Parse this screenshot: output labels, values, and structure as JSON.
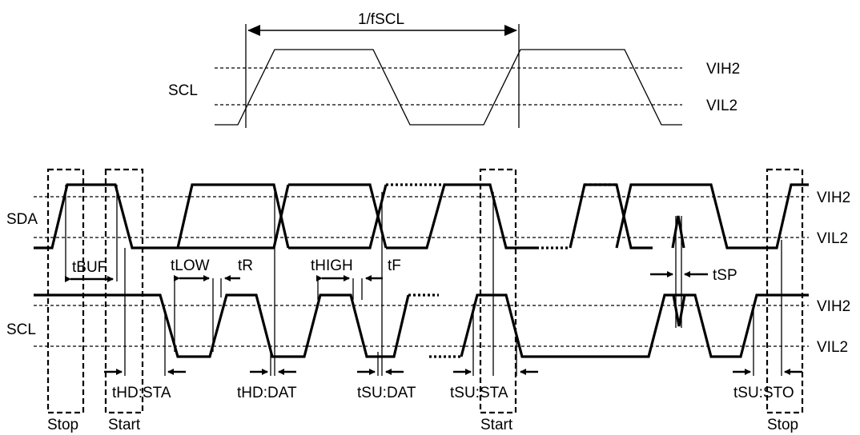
{
  "top": {
    "signal_label": "SCL",
    "period_label": "1/fSCL",
    "vih_label": "VIH2",
    "vil_label": "VIL2"
  },
  "bottom": {
    "sda_label": "SDA",
    "scl_label": "SCL",
    "sda_vih": "VIH2",
    "sda_vil": "VIL2",
    "scl_vih": "VIH2",
    "scl_vil": "VIL2"
  },
  "timings": {
    "tbuf": "tBUF",
    "tlow": "tLOW",
    "tr": "tR",
    "thigh": "tHIGH",
    "tf": "tF",
    "tsp": "tSP",
    "thd_sta": "tHD:STA",
    "thd_dat": "tHD:DAT",
    "tsu_dat": "tSU:DAT",
    "tsu_sta": "tSU:STA",
    "tsu_sto": "tSU:STO"
  },
  "conditions": {
    "stop1": "Stop",
    "start1": "Start",
    "start2": "Start",
    "stop2": "Stop"
  }
}
